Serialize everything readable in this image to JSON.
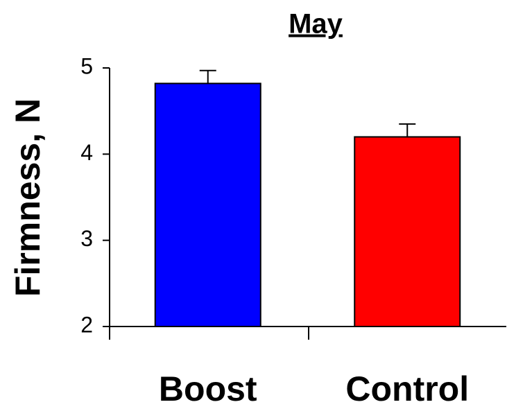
{
  "chart_data": {
    "type": "bar",
    "title": "May",
    "ylabel": "Firmness, N",
    "categories": [
      "Boost",
      "Control"
    ],
    "values": [
      4.82,
      4.2
    ],
    "errors": [
      0.15,
      0.15
    ],
    "colors": [
      "#0000ff",
      "#ff0000"
    ],
    "ylim": [
      2,
      5
    ],
    "yticks": [
      2,
      3,
      4,
      5
    ],
    "grid": false
  }
}
